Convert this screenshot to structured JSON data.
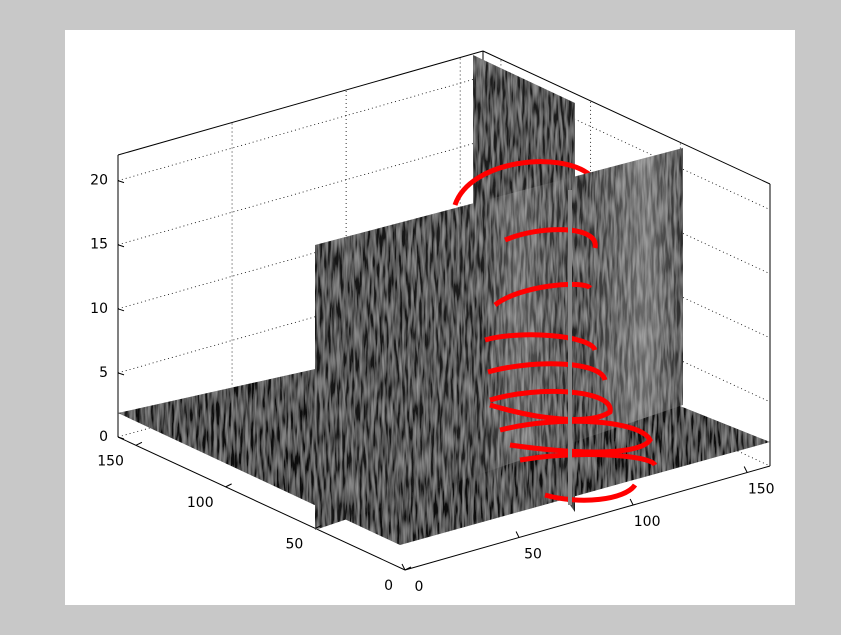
{
  "chart_data": {
    "type": "slice3d",
    "xlim": [
      0,
      160
    ],
    "xticks": [
      0,
      50,
      100,
      150
    ],
    "ylim": [
      0,
      160
    ],
    "yticks": [
      0,
      50,
      100,
      150
    ],
    "zlim": [
      0,
      22
    ],
    "zticks": [
      0,
      5,
      10,
      15,
      20
    ],
    "grid": true,
    "color": "#ff0000"
  }
}
